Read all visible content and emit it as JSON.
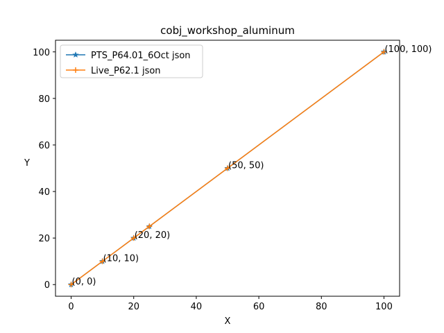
{
  "chart_data": {
    "type": "line",
    "title": "cobj_workshop_aluminum",
    "xlabel": "X",
    "ylabel": "Y",
    "xlim": [
      -5,
      105
    ],
    "ylim": [
      -5,
      105
    ],
    "xticks": [
      0,
      20,
      40,
      60,
      80,
      100
    ],
    "yticks": [
      0,
      20,
      40,
      60,
      80,
      100
    ],
    "grid": false,
    "legend_position": "top-left",
    "series": [
      {
        "name": "PTS_P64.01_6Oct json",
        "color": "#1f77b4",
        "marker": "star",
        "x": [
          0,
          10,
          20,
          25,
          50,
          100
        ],
        "y": [
          0,
          10,
          20,
          25,
          50,
          100
        ]
      },
      {
        "name": "Live_P62.1 json",
        "color": "#ff7f0e",
        "marker": "plus",
        "x": [
          0,
          10,
          20,
          25,
          50,
          100
        ],
        "y": [
          0,
          10,
          20,
          25,
          50,
          100
        ]
      }
    ],
    "annotations": [
      {
        "text": "(0, 0)",
        "x": 0,
        "y": 0
      },
      {
        "text": "(10, 10)",
        "x": 10,
        "y": 10
      },
      {
        "text": "(20, 20)",
        "x": 20,
        "y": 20
      },
      {
        "text": "(50, 50)",
        "x": 50,
        "y": 50
      },
      {
        "text": "(100, 100)",
        "x": 100,
        "y": 100
      }
    ]
  }
}
